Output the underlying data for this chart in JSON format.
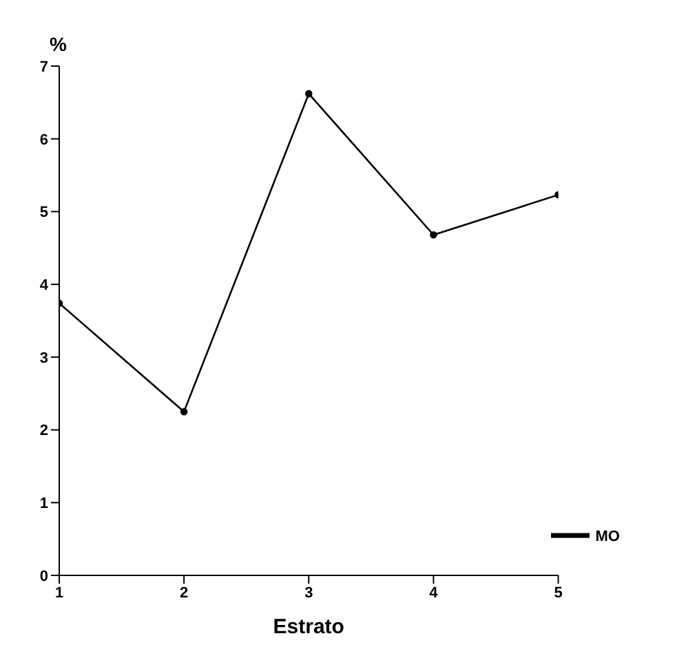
{
  "chart_data": {
    "type": "line",
    "xlabel": "Estrato",
    "ylabel": "%",
    "x": [
      1,
      2,
      3,
      4,
      5
    ],
    "series": [
      {
        "name": "MO",
        "color": "#000000",
        "values": [
          3.74,
          2.25,
          6.62,
          4.68,
          5.23
        ]
      }
    ],
    "xlim": [
      1,
      5
    ],
    "xticks": [
      1,
      2,
      3,
      4,
      5
    ],
    "ylim": [
      0,
      7
    ],
    "yticks": [
      0,
      1,
      2,
      3,
      4,
      5,
      6,
      7
    ],
    "grid": false,
    "legend": "bottom right",
    "marker": "circle",
    "line_style": "solid"
  }
}
